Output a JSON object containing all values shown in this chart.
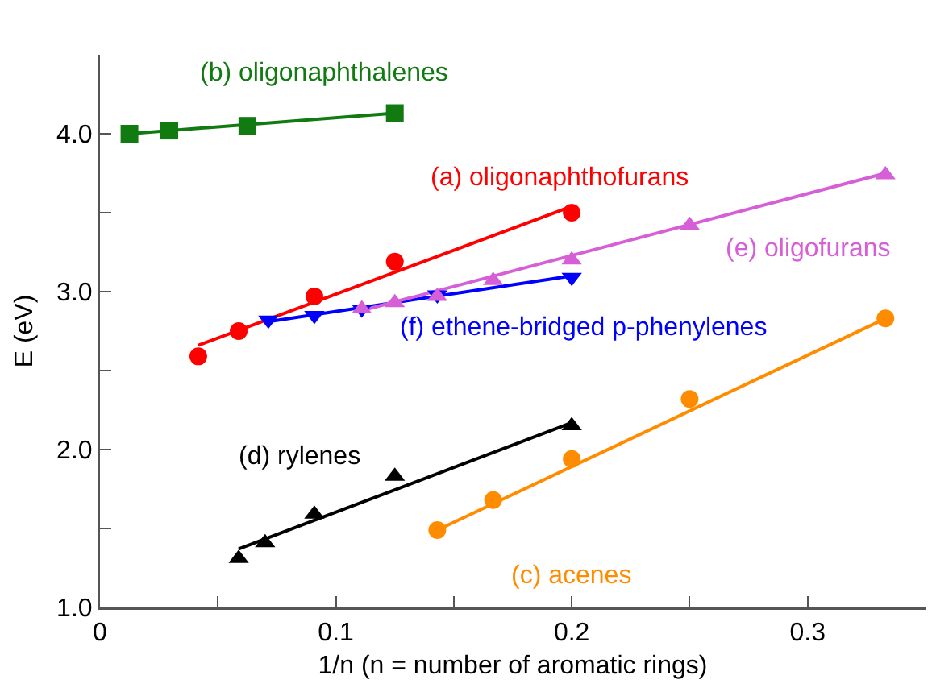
{
  "chart_data": {
    "type": "scatter",
    "xlabel": "1/n (n = number of aromatic rings)",
    "ylabel": "E (eV)",
    "xlim": [
      0,
      0.35
    ],
    "ylim": [
      1,
      4.5
    ],
    "xticks": [
      0,
      {
        "value": 0.05,
        "label": null
      },
      0.1,
      {
        "value": 0.15,
        "label": null
      },
      0.2,
      {
        "value": 0.25,
        "label": null
      },
      0.3
    ],
    "yticks": [
      {
        "value": 1,
        "label": "1.0"
      },
      {
        "value": 1.5,
        "label": null
      },
      {
        "value": 2,
        "label": "2.0"
      },
      {
        "value": 2.5,
        "label": null
      },
      {
        "value": 3,
        "label": "3.0"
      },
      {
        "value": 3.5,
        "label": null
      },
      {
        "value": 4,
        "label": "4.0"
      }
    ],
    "grid": false,
    "legend": false,
    "series": [
      {
        "name": "(b) oligonaphthalenes",
        "marker": "square",
        "color": "#117a11",
        "x": [
          0.0125,
          0.0294,
          0.0625,
          0.125
        ],
        "values": [
          4.0,
          4.02,
          4.05,
          4.13
        ]
      },
      {
        "name": "(a) oligonaphthofurans",
        "marker": "circle",
        "color": "#ff0000",
        "x": [
          0.0417,
          0.0588,
          0.0909,
          0.125,
          0.2
        ],
        "values": [
          2.59,
          2.75,
          2.97,
          3.19,
          3.5
        ]
      },
      {
        "name": "(f) ethene-bridged p-phenylenes",
        "marker": "triangle-down",
        "color": "#0000ff",
        "x": [
          0.0714,
          0.0909,
          0.111,
          0.143,
          0.2
        ],
        "values": [
          2.82,
          2.85,
          2.89,
          2.98,
          3.09
        ]
      },
      {
        "name": "(e) oligofurans",
        "marker": "triangle",
        "color": "#d65ed6",
        "x": [
          0.111,
          0.125,
          0.143,
          0.1667,
          0.2,
          0.25,
          0.333
        ],
        "values": [
          2.89,
          2.93,
          2.97,
          3.07,
          3.2,
          3.42,
          3.74
        ]
      },
      {
        "name": "(d) rylenes",
        "marker": "triangle",
        "color": "#000000",
        "x": [
          0.0588,
          0.07,
          0.0909,
          0.125,
          0.2
        ],
        "values": [
          1.31,
          1.41,
          1.59,
          1.83,
          2.15
        ]
      },
      {
        "name": "(c) acenes",
        "marker": "circle",
        "color": "#ff8c00",
        "x": [
          0.143,
          0.1667,
          0.2,
          0.25,
          0.333
        ],
        "values": [
          1.49,
          1.68,
          1.94,
          2.32,
          2.83
        ]
      },
      {
        "type": "line",
        "marker": "none",
        "color": "#117a11",
        "x": [
          0.0125,
          0.125
        ],
        "values": [
          4.0,
          4.13
        ]
      },
      {
        "type": "line",
        "marker": "none",
        "color": "#ff0000",
        "x": [
          0.0417,
          0.2
        ],
        "values": [
          2.66,
          3.54
        ]
      },
      {
        "type": "line",
        "marker": "none",
        "color": "#d65ed6",
        "x": [
          0.111,
          0.333
        ],
        "values": [
          2.88,
          3.75
        ]
      },
      {
        "type": "line",
        "marker": "none",
        "color": "#0000ff",
        "x": [
          0.0714,
          0.2
        ],
        "values": [
          2.81,
          3.1
        ]
      },
      {
        "type": "line",
        "marker": "none",
        "color": "#000000",
        "x": [
          0.0588,
          0.2
        ],
        "values": [
          1.37,
          2.17
        ]
      },
      {
        "type": "line",
        "marker": "none",
        "color": "#ff8c00",
        "x": [
          0.143,
          0.333
        ],
        "values": [
          1.49,
          2.83
        ]
      }
    ]
  }
}
